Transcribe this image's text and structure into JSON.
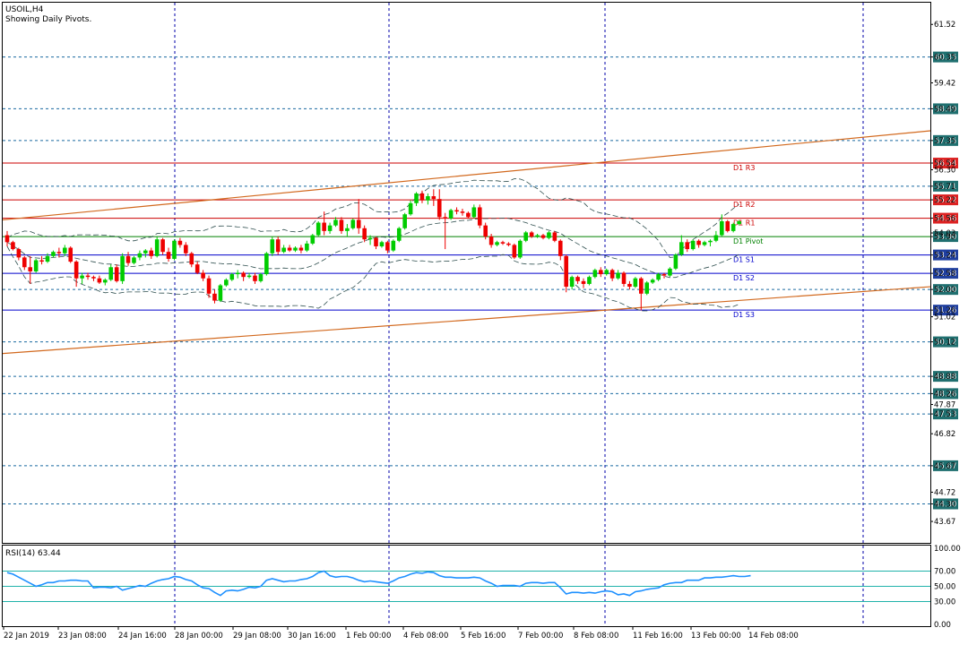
{
  "header": {
    "symbol": "USOIL,H4",
    "subtitle": "Showing Daily Pivots."
  },
  "rsi": {
    "label": "RSI(14) 63.44"
  },
  "colors": {
    "bull": "#00cc00",
    "bear": "#ee0000",
    "grid": "#0000aa",
    "trend": "#d2691e",
    "resistance": "#cc0000",
    "support": "#0000cc",
    "pivot": "#008000",
    "rsi_line": "#1e90ff",
    "rsi_level": "#20b2aa"
  },
  "chart_data": [
    {
      "type": "candlestick",
      "title": "USOIL,H4",
      "ylim": [
        42.9,
        62.3
      ],
      "price_labels": [
        "61.52",
        "60.35",
        "59.42",
        "58.49",
        "57.35",
        "56.54",
        "56.30",
        "55.71",
        "55.22",
        "54.56",
        "54.03",
        "53.90",
        "53.24",
        "52.58",
        "52.00",
        "51.26",
        "51.02",
        "50.12",
        "48.88",
        "48.26",
        "47.87",
        "47.53",
        "46.82",
        "45.67",
        "44.72",
        "44.30",
        "43.67"
      ],
      "x_labels": [
        "22 Jan 2019",
        "23 Jan 08:00",
        "24 Jan 16:00",
        "28 Jan 00:00",
        "29 Jan 08:00",
        "30 Jan 16:00",
        "1 Feb 00:00",
        "4 Feb 08:00",
        "5 Feb 16:00",
        "7 Feb 00:00",
        "8 Feb 08:00",
        "11 Feb 16:00",
        "13 Feb 00:00",
        "14 Feb 08:00"
      ],
      "pivot_levels": [
        {
          "name": "D1 R3",
          "value": 56.54,
          "label": "56.54",
          "kind": "resistance"
        },
        {
          "name": "D1 R2",
          "value": 55.22,
          "label": "55.22",
          "kind": "resistance"
        },
        {
          "name": "D1 R1",
          "value": 54.56,
          "label": "54.56",
          "kind": "resistance"
        },
        {
          "name": "D1 Pivot",
          "value": 53.9,
          "label": "53.90",
          "kind": "pivot"
        },
        {
          "name": "D1 S1",
          "value": 53.24,
          "label": "53.24",
          "kind": "support"
        },
        {
          "name": "D1 S2",
          "value": 52.58,
          "label": "52.58",
          "kind": "support"
        },
        {
          "name": "D1 S3",
          "value": 51.26,
          "label": "51.26",
          "kind": "support"
        }
      ],
      "dashed_levels": [
        60.35,
        58.49,
        57.35,
        55.71,
        52.0,
        50.12,
        48.88,
        48.26,
        47.53,
        45.67,
        44.3
      ],
      "dashed_level_labels": [
        "60.35",
        "58.49",
        "57.35",
        "55.71",
        "52.00",
        "50.12",
        "48.88",
        "48.26",
        "47.53",
        "45.67",
        "44.30"
      ],
      "trendlines": [
        {
          "from": [
            0,
            54.5
          ],
          "to": [
            171,
            57.7
          ]
        },
        {
          "from": [
            0,
            49.7
          ],
          "to": [
            171,
            52.1
          ]
        }
      ],
      "candles": [
        [
          53.95,
          54.1,
          53.55,
          53.7
        ],
        [
          53.7,
          53.75,
          53.4,
          53.45
        ],
        [
          53.45,
          53.5,
          53.05,
          53.15
        ],
        [
          53.15,
          53.2,
          52.7,
          52.8
        ],
        [
          52.8,
          53.2,
          52.2,
          52.65
        ],
        [
          52.65,
          53.1,
          52.6,
          53.05
        ],
        [
          53.05,
          53.2,
          52.9,
          53.0
        ],
        [
          53.0,
          53.3,
          52.95,
          53.2
        ],
        [
          53.2,
          53.4,
          53.15,
          53.35
        ],
        [
          53.35,
          53.5,
          53.15,
          53.3
        ],
        [
          53.3,
          53.6,
          53.2,
          53.5
        ],
        [
          53.5,
          53.55,
          52.95,
          53.0
        ],
        [
          53.0,
          53.05,
          52.1,
          52.4
        ],
        [
          52.4,
          52.6,
          52.2,
          52.5
        ],
        [
          52.5,
          52.6,
          52.35,
          52.45
        ],
        [
          52.45,
          52.5,
          52.3,
          52.4
        ],
        [
          52.4,
          52.5,
          52.2,
          52.25
        ],
        [
          52.25,
          52.4,
          52.15,
          52.35
        ],
        [
          52.35,
          52.9,
          52.3,
          52.8
        ],
        [
          52.8,
          52.9,
          52.25,
          52.3
        ],
        [
          52.3,
          53.3,
          52.2,
          53.2
        ],
        [
          53.2,
          53.35,
          52.85,
          52.95
        ],
        [
          52.95,
          53.2,
          52.9,
          53.15
        ],
        [
          53.15,
          53.4,
          53.05,
          53.3
        ],
        [
          53.3,
          53.45,
          53.15,
          53.4
        ],
        [
          53.4,
          53.5,
          53.1,
          53.2
        ],
        [
          53.2,
          53.9,
          53.15,
          53.8
        ],
        [
          53.8,
          53.85,
          53.25,
          53.35
        ],
        [
          53.35,
          53.5,
          53.0,
          53.1
        ],
        [
          53.1,
          53.8,
          53.05,
          53.75
        ],
        [
          53.75,
          53.85,
          53.5,
          53.6
        ],
        [
          53.6,
          53.7,
          53.2,
          53.3
        ],
        [
          53.3,
          53.35,
          52.8,
          52.9
        ],
        [
          52.9,
          53.0,
          52.55,
          52.6
        ],
        [
          52.6,
          52.7,
          52.3,
          52.4
        ],
        [
          52.4,
          52.5,
          51.7,
          51.85
        ],
        [
          51.85,
          52.0,
          51.5,
          51.6
        ],
        [
          51.6,
          52.2,
          51.55,
          52.15
        ],
        [
          52.15,
          52.4,
          52.1,
          52.35
        ],
        [
          52.35,
          52.6,
          52.3,
          52.55
        ],
        [
          52.55,
          52.7,
          52.4,
          52.6
        ],
        [
          52.6,
          52.65,
          52.3,
          52.45
        ],
        [
          52.45,
          52.6,
          52.4,
          52.5
        ],
        [
          52.5,
          52.6,
          52.2,
          52.3
        ],
        [
          52.3,
          52.6,
          52.25,
          52.55
        ],
        [
          52.55,
          53.35,
          52.5,
          53.3
        ],
        [
          53.3,
          53.9,
          53.2,
          53.8
        ],
        [
          53.8,
          53.9,
          53.25,
          53.35
        ],
        [
          53.35,
          53.6,
          53.3,
          53.5
        ],
        [
          53.5,
          53.6,
          53.35,
          53.4
        ],
        [
          53.4,
          53.55,
          53.35,
          53.5
        ],
        [
          53.5,
          53.6,
          53.3,
          53.4
        ],
        [
          53.4,
          53.75,
          53.35,
          53.65
        ],
        [
          53.65,
          54.0,
          53.6,
          53.95
        ],
        [
          53.95,
          54.45,
          53.9,
          54.4
        ],
        [
          54.4,
          54.8,
          53.95,
          54.1
        ],
        [
          54.1,
          54.4,
          54.0,
          54.3
        ],
        [
          54.3,
          54.6,
          54.25,
          54.5
        ],
        [
          54.5,
          54.6,
          54.0,
          54.1
        ],
        [
          54.1,
          54.35,
          53.9,
          54.2
        ],
        [
          54.2,
          54.55,
          54.15,
          54.5
        ],
        [
          54.5,
          55.25,
          54.0,
          54.2
        ],
        [
          54.2,
          54.3,
          53.7,
          53.8
        ],
        [
          53.8,
          53.95,
          53.6,
          53.85
        ],
        [
          53.85,
          53.9,
          53.45,
          53.55
        ],
        [
          53.55,
          53.75,
          53.5,
          53.7
        ],
        [
          53.7,
          53.75,
          53.3,
          53.4
        ],
        [
          53.4,
          53.8,
          53.35,
          53.75
        ],
        [
          53.75,
          54.25,
          53.7,
          54.2
        ],
        [
          54.2,
          54.75,
          54.15,
          54.7
        ],
        [
          54.7,
          55.2,
          54.65,
          55.1
        ],
        [
          55.1,
          55.5,
          55.0,
          55.45
        ],
        [
          55.45,
          55.55,
          55.1,
          55.2
        ],
        [
          55.2,
          55.45,
          55.05,
          55.35
        ],
        [
          55.35,
          55.6,
          55.0,
          55.25
        ],
        [
          55.25,
          55.6,
          54.5,
          54.6
        ],
        [
          54.6,
          54.75,
          53.45,
          54.55
        ],
        [
          54.55,
          54.9,
          54.5,
          54.85
        ],
        [
          54.85,
          54.95,
          54.7,
          54.8
        ],
        [
          54.8,
          54.9,
          54.65,
          54.75
        ],
        [
          54.75,
          54.8,
          54.55,
          54.6
        ],
        [
          54.6,
          55.05,
          54.55,
          54.95
        ],
        [
          54.95,
          55.05,
          54.2,
          54.3
        ],
        [
          54.3,
          54.4,
          53.8,
          53.9
        ],
        [
          53.9,
          54.0,
          53.5,
          53.6
        ],
        [
          53.6,
          53.75,
          53.55,
          53.7
        ],
        [
          53.7,
          53.75,
          53.6,
          53.65
        ],
        [
          53.65,
          53.7,
          53.55,
          53.6
        ],
        [
          53.6,
          53.65,
          53.1,
          53.15
        ],
        [
          53.15,
          53.8,
          53.1,
          53.75
        ],
        [
          53.75,
          54.1,
          53.7,
          54.05
        ],
        [
          54.05,
          54.1,
          53.85,
          53.9
        ],
        [
          53.9,
          54.0,
          53.85,
          53.95
        ],
        [
          53.95,
          54.0,
          53.8,
          53.85
        ],
        [
          53.85,
          54.1,
          53.8,
          54.05
        ],
        [
          54.05,
          54.1,
          53.7,
          53.75
        ],
        [
          53.75,
          53.8,
          53.05,
          53.2
        ],
        [
          53.2,
          53.25,
          51.9,
          52.1
        ],
        [
          52.1,
          52.5,
          52.0,
          52.45
        ],
        [
          52.45,
          52.5,
          52.2,
          52.3
        ],
        [
          52.3,
          52.4,
          52.05,
          52.2
        ],
        [
          52.2,
          52.5,
          52.15,
          52.45
        ],
        [
          52.45,
          52.75,
          52.4,
          52.7
        ],
        [
          52.7,
          52.8,
          52.45,
          52.55
        ],
        [
          52.55,
          52.75,
          52.5,
          52.7
        ],
        [
          52.7,
          52.75,
          52.3,
          52.4
        ],
        [
          52.4,
          52.7,
          52.35,
          52.6
        ],
        [
          52.6,
          52.65,
          52.1,
          52.2
        ],
        [
          52.2,
          52.3,
          52.0,
          52.1
        ],
        [
          52.1,
          52.45,
          52.05,
          52.4
        ],
        [
          52.4,
          52.45,
          51.25,
          51.85
        ],
        [
          51.85,
          52.3,
          51.8,
          52.25
        ],
        [
          52.25,
          52.4,
          52.2,
          52.35
        ],
        [
          52.35,
          52.6,
          52.3,
          52.55
        ],
        [
          52.55,
          52.6,
          52.4,
          52.5
        ],
        [
          52.5,
          52.8,
          52.45,
          52.75
        ],
        [
          52.75,
          53.3,
          52.7,
          53.25
        ],
        [
          53.25,
          53.95,
          53.2,
          53.7
        ],
        [
          53.7,
          53.8,
          53.35,
          53.45
        ],
        [
          53.45,
          53.8,
          53.4,
          53.75
        ],
        [
          53.75,
          53.8,
          53.5,
          53.6
        ],
        [
          53.6,
          53.75,
          53.55,
          53.7
        ],
        [
          53.7,
          53.8,
          53.55,
          53.75
        ],
        [
          53.75,
          54.1,
          53.7,
          53.95
        ],
        [
          53.95,
          54.7,
          53.9,
          54.45
        ],
        [
          54.45,
          54.5,
          54.05,
          54.1
        ],
        [
          54.1,
          54.4,
          54.05,
          54.35
        ],
        [
          54.35,
          54.5,
          54.3,
          54.45
        ]
      ]
    },
    {
      "type": "line",
      "title": "RSI(14) 63.44",
      "ylim": [
        0,
        100
      ],
      "y_ticks": [
        "100.00",
        "70.00",
        "50.00",
        "30.00",
        "0.00"
      ],
      "levels": [
        70,
        50,
        30
      ],
      "values": [
        68,
        66,
        62,
        58,
        54,
        50,
        52,
        55,
        55,
        57,
        57,
        58,
        58,
        57,
        57,
        48,
        49,
        49,
        48,
        50,
        45,
        47,
        49,
        51,
        50,
        54,
        57,
        59,
        60,
        63,
        62,
        59,
        57,
        52,
        48,
        47,
        42,
        38,
        44,
        45,
        44,
        46,
        49,
        48,
        50,
        58,
        60,
        58,
        56,
        57,
        57,
        59,
        60,
        63,
        68,
        70,
        64,
        62,
        63,
        63,
        61,
        58,
        56,
        57,
        56,
        55,
        54,
        57,
        61,
        63,
        66,
        68,
        67,
        69,
        68,
        64,
        62,
        62,
        61,
        61,
        61,
        62,
        61,
        57,
        54,
        50,
        51,
        51,
        51,
        50,
        54,
        55,
        55,
        54,
        55,
        55,
        48,
        40,
        42,
        42,
        41,
        42,
        41,
        43,
        44,
        43,
        39,
        40,
        38,
        43,
        44,
        46,
        47,
        48,
        52,
        54,
        55,
        55,
        58,
        58,
        58,
        61,
        61,
        62,
        62,
        63,
        64,
        63,
        63,
        64
      ]
    }
  ]
}
